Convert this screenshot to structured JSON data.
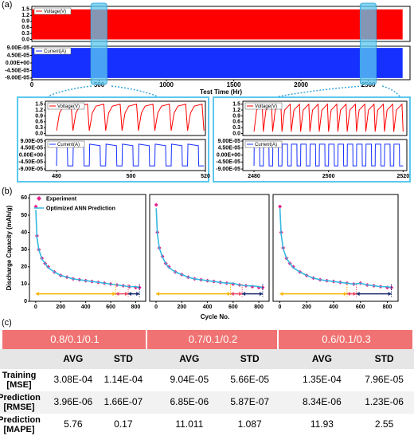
{
  "panel_labels": [
    "(a)",
    "(b)",
    "(c)"
  ],
  "chart_data": [
    {
      "type": "band",
      "xlim": [
        0,
        2810
      ],
      "ylim": [
        -0.1,
        1.65
      ],
      "yticks": [
        1.5,
        1.2,
        0.9,
        0.6,
        0.3,
        {
          "value": 0,
          "label": "0.0"
        }
      ],
      "series": [
        {
          "name": "Voltage(V)",
          "color": "#ff0000",
          "x": [
            0,
            2755
          ],
          "low": [
            0,
            0
          ],
          "high": [
            1.5,
            1.5
          ]
        }
      ]
    },
    {
      "type": "band",
      "xlim": [
        0,
        2810
      ],
      "ylim": [
        -0.0001,
        0.0001
      ],
      "x_label": "Test Time (Hr)",
      "xticks": [
        0,
        500,
        1000,
        1500,
        2000,
        2500
      ],
      "yticks": [
        {
          "value": 9e-05,
          "label": "9.00E-05"
        },
        {
          "value": 4.5e-05,
          "label": "4.50E-05"
        },
        {
          "value": 0,
          "label": "0.00E+00"
        },
        {
          "value": -4.5e-05,
          "label": "-4.50E-05"
        },
        {
          "value": -9e-05,
          "label": "-9.00E-05"
        }
      ],
      "series": [
        {
          "name": "Current(A)",
          "color": "#1530ff",
          "x": [
            0,
            2755
          ],
          "low": [
            -9e-05,
            -9e-05
          ],
          "high": [
            9e-05,
            9e-05
          ]
        }
      ]
    },
    {
      "type": "line",
      "xlim": [
        477,
        520
      ],
      "ylim": [
        -0.1,
        1.65
      ],
      "yticks": [
        1.5,
        1.2,
        0.9,
        0.6,
        0.3,
        {
          "value": 0,
          "label": "0.0"
        }
      ],
      "series": [
        {
          "name": "Voltage(V)",
          "color": "#ff0000",
          "x": [
            480,
            480.8,
            481.8,
            483.9,
            484.4,
            485.2,
            486.2,
            488.3,
            488.8,
            489.6,
            490.6,
            492.7,
            493.2,
            494,
            495,
            497.1,
            497.6,
            498.4,
            499.4,
            501.5,
            502,
            502.8,
            503.8,
            505.9,
            506.4,
            507.2,
            508.2,
            510.3,
            510.8,
            511.6,
            512.6,
            514.7,
            515.2,
            516,
            517,
            519.1,
            519.6
          ],
          "values": [
            0.15,
            1.05,
            1.4,
            1.5,
            0.15,
            1.05,
            1.4,
            1.5,
            0.15,
            1.05,
            1.4,
            1.5,
            0.15,
            1.05,
            1.4,
            1.5,
            0.15,
            1.05,
            1.4,
            1.5,
            0.15,
            1.05,
            1.4,
            1.5,
            0.15,
            1.05,
            1.4,
            1.5,
            0.15,
            1.05,
            1.4,
            1.5,
            0.15,
            1.05,
            1.4,
            1.5,
            0.15
          ]
        }
      ]
    },
    {
      "type": "line",
      "xlim": [
        477,
        520
      ],
      "ylim": [
        -0.0001,
        0.0001
      ],
      "xticks": [
        480,
        500,
        520
      ],
      "yticks": [
        {
          "value": 9e-05,
          "label": "9.00E-05"
        },
        {
          "value": 4.5e-05,
          "label": "4.50E-05"
        },
        {
          "value": 0,
          "label": "0.00E+00"
        },
        {
          "value": -4.5e-05,
          "label": "-4.50E-05"
        },
        {
          "value": -9e-05,
          "label": "-9.00E-05"
        }
      ],
      "series": [
        {
          "name": "Current(A)",
          "color": "#1530ff",
          "x": [
            480,
            480.1,
            482.9,
            483,
            484.4,
            484.5,
            487.3,
            487.4,
            488.8,
            488.9,
            491.7,
            491.8,
            493.2,
            493.3,
            496.1,
            496.2,
            497.6,
            497.7,
            500.5,
            500.6,
            502,
            502.1,
            504.9,
            505,
            506.4,
            506.5,
            509.3,
            509.4,
            510.8,
            510.9,
            513.7,
            513.8,
            515.2,
            515.3,
            518.1,
            518.2,
            519.6
          ],
          "values": [
            -7e-05,
            7e-05,
            6e-05,
            -7e-05,
            -7e-05,
            7e-05,
            6e-05,
            -7e-05,
            -7e-05,
            7e-05,
            6e-05,
            -7e-05,
            -7e-05,
            7e-05,
            6e-05,
            -7e-05,
            -7e-05,
            7e-05,
            6e-05,
            -7e-05,
            -7e-05,
            7e-05,
            6e-05,
            -7e-05,
            -7e-05,
            7e-05,
            6e-05,
            -7e-05,
            -7e-05,
            7e-05,
            6e-05,
            -7e-05,
            -7e-05,
            7e-05,
            6e-05,
            -7e-05,
            -7e-05
          ]
        }
      ]
    },
    {
      "type": "line",
      "xlim": [
        2477,
        2521
      ],
      "ylim": [
        -0.1,
        1.65
      ],
      "yticks": [
        1.5,
        1.2,
        0.9,
        0.6,
        0.3,
        {
          "value": 0,
          "label": "0.0"
        }
      ],
      "series": [
        {
          "name": "Voltage(V)",
          "color": "#ff0000",
          "x": [
            2480,
            2480.7,
            2482.2,
            2482.5,
            2483.2,
            2484.7,
            2485,
            2485.7,
            2487.2,
            2487.5,
            2488.2,
            2489.7,
            2490,
            2490.7,
            2492.2,
            2492.5,
            2493.2,
            2494.7,
            2495,
            2495.7,
            2497.2,
            2497.5,
            2498.2,
            2499.7,
            2500,
            2500.7,
            2502.2,
            2502.5,
            2503.2,
            2504.7,
            2505,
            2505.7,
            2507.2,
            2507.5,
            2508.2,
            2509.7,
            2510,
            2510.7,
            2512.2,
            2512.5,
            2513.2,
            2514.7,
            2515,
            2515.7,
            2517.2,
            2517.5,
            2518.2,
            2519.7,
            2520
          ],
          "values": [
            0.1,
            1.2,
            1.5,
            0.1,
            1.2,
            1.5,
            0.1,
            1.2,
            1.5,
            0.1,
            1.2,
            1.5,
            0.1,
            1.2,
            1.5,
            0.1,
            1.2,
            1.5,
            0.1,
            1.2,
            1.5,
            0.1,
            1.2,
            1.5,
            0.1,
            1.2,
            1.5,
            0.1,
            1.2,
            1.5,
            0.1,
            1.2,
            1.5,
            0.1,
            1.2,
            1.5,
            0.1,
            1.2,
            1.5,
            0.1,
            1.2,
            1.5,
            0.1,
            1.2,
            1.5,
            0.1,
            1.2,
            1.5,
            0.1
          ]
        }
      ]
    },
    {
      "type": "line",
      "xlim": [
        2477,
        2521
      ],
      "ylim": [
        -0.0001,
        0.0001
      ],
      "xticks": [
        2480,
        2500,
        2520
      ],
      "yticks": [
        {
          "value": 9e-05,
          "label": "9.00E-05"
        },
        {
          "value": 4.5e-05,
          "label": "4.50E-05"
        },
        {
          "value": 0,
          "label": "0.00E+00"
        },
        {
          "value": -4.5e-05,
          "label": "-4.50E-05"
        },
        {
          "value": -9e-05,
          "label": "-9.00E-05"
        }
      ],
      "series": [
        {
          "name": "Current(A)",
          "color": "#1530ff",
          "x": [
            2480,
            2480.05,
            2481.5,
            2481.55,
            2482.5,
            2482.55,
            2484,
            2484.05,
            2485,
            2485.05,
            2486.5,
            2486.55,
            2487.5,
            2487.55,
            2489,
            2489.05,
            2490,
            2490.05,
            2491.5,
            2491.55,
            2492.5,
            2492.55,
            2494,
            2494.05,
            2495,
            2495.05,
            2496.5,
            2496.55,
            2497.5,
            2497.55,
            2499,
            2499.05,
            2500,
            2500.05,
            2501.5,
            2501.55,
            2502.5,
            2502.55,
            2504,
            2504.05,
            2505,
            2505.05,
            2506.5,
            2506.55,
            2507.5,
            2507.55,
            2509,
            2509.05,
            2510,
            2510.05,
            2511.5,
            2511.55,
            2512.5,
            2512.55,
            2514,
            2514.05,
            2515,
            2515.05,
            2516.5,
            2516.55,
            2517.5,
            2517.55,
            2519,
            2519.05,
            2520
          ],
          "values": [
            -7e-05,
            7e-05,
            7e-05,
            -7e-05,
            -7e-05,
            7e-05,
            7e-05,
            -7e-05,
            -7e-05,
            7e-05,
            7e-05,
            -7e-05,
            -7e-05,
            7e-05,
            7e-05,
            -7e-05,
            -7e-05,
            7e-05,
            7e-05,
            -7e-05,
            -7e-05,
            7e-05,
            7e-05,
            -7e-05,
            -7e-05,
            7e-05,
            7e-05,
            -7e-05,
            -7e-05,
            7e-05,
            7e-05,
            -7e-05,
            -7e-05,
            7e-05,
            7e-05,
            -7e-05,
            -7e-05,
            7e-05,
            7e-05,
            -7e-05,
            -7e-05,
            7e-05,
            7e-05,
            -7e-05,
            -7e-05,
            7e-05,
            7e-05,
            -7e-05,
            -7e-05,
            7e-05,
            7e-05,
            -7e-05,
            -7e-05,
            7e-05,
            7e-05,
            -7e-05,
            -7e-05,
            7e-05,
            7e-05,
            -7e-05,
            -7e-05,
            7e-05,
            7e-05,
            -7e-05,
            -7e-05
          ]
        }
      ]
    },
    {
      "type": "line",
      "xlim": [
        -50,
        880
      ],
      "ylim": [
        0,
        62
      ],
      "x_label": "Cycle No.",
      "y_label": "Discharge Capacity (mAh/g)",
      "legend": "upper left",
      "xticks": [
        0,
        200,
        400,
        600,
        800
      ],
      "yticks": [
        0,
        10,
        20,
        30,
        40,
        50,
        60
      ],
      "series": [
        {
          "name": "Experiment",
          "color": "#e8208a",
          "style": "markers",
          "x": [
            1,
            10,
            25,
            50,
            75,
            100,
            150,
            200,
            250,
            300,
            350,
            400,
            450,
            500,
            550,
            600,
            650,
            700,
            750,
            800,
            830
          ],
          "values": [
            55,
            38,
            30,
            25,
            22,
            20,
            17,
            15,
            14,
            13,
            12.5,
            12,
            11.5,
            11,
            10.5,
            10,
            9.5,
            9,
            8.5,
            8,
            8
          ]
        },
        {
          "name": "Optimized ANN Prediction",
          "color": "#35b8e0",
          "style": "line",
          "x": [
            1,
            10,
            25,
            50,
            75,
            100,
            150,
            200,
            250,
            300,
            350,
            400,
            450,
            500,
            550,
            600,
            650,
            700,
            750,
            800,
            830
          ],
          "values": [
            53,
            37,
            30,
            24.5,
            22,
            19.5,
            17,
            15,
            14,
            13,
            12.5,
            12,
            11.5,
            11,
            10.5,
            10,
            9.5,
            9,
            8.5,
            8.5,
            8
          ]
        }
      ],
      "ranges": [
        {
          "start": 0,
          "end": 640,
          "color": "#f5b400"
        },
        {
          "start": 640,
          "end": 740,
          "color": "#e8475f"
        },
        {
          "start": 740,
          "end": 830,
          "color": "#1a2a6c"
        }
      ]
    },
    {
      "type": "line",
      "xlim": [
        -50,
        880
      ],
      "ylim": [
        0,
        62
      ],
      "xticks": [
        0,
        200,
        400,
        600,
        800
      ],
      "series": [
        {
          "name": "Experiment",
          "color": "#e8208a",
          "style": "markers",
          "x": [
            1,
            10,
            25,
            50,
            75,
            100,
            150,
            200,
            250,
            300,
            350,
            400,
            450,
            500,
            550,
            600,
            650,
            700,
            750,
            800,
            830
          ],
          "values": [
            56,
            40,
            31,
            26,
            22,
            20,
            17,
            15.5,
            14,
            13,
            12.5,
            12,
            11.5,
            11,
            10.5,
            10,
            9.5,
            9,
            8.5,
            8,
            8
          ]
        },
        {
          "name": "Optimized ANN Prediction",
          "color": "#35b8e0",
          "style": "line",
          "x": [
            1,
            10,
            25,
            50,
            75,
            100,
            150,
            200,
            250,
            300,
            350,
            400,
            450,
            500,
            550,
            600,
            650,
            700,
            750,
            800,
            830
          ],
          "values": [
            54,
            39,
            31,
            25.5,
            22,
            19.5,
            17,
            15.5,
            14,
            13,
            12.5,
            12,
            11.5,
            11,
            10.5,
            10.5,
            9.5,
            9,
            9,
            8.5,
            8
          ]
        }
      ],
      "ranges": [
        {
          "start": 0,
          "end": 580,
          "color": "#f5b400"
        },
        {
          "start": 580,
          "end": 670,
          "color": "#e8475f"
        },
        {
          "start": 670,
          "end": 830,
          "color": "#1a2a6c"
        }
      ]
    },
    {
      "type": "line",
      "xlim": [
        -50,
        880
      ],
      "ylim": [
        0,
        62
      ],
      "xticks": [
        0,
        200,
        400,
        600,
        800
      ],
      "series": [
        {
          "name": "Experiment",
          "color": "#e8208a",
          "style": "markers",
          "x": [
            1,
            10,
            25,
            50,
            75,
            100,
            150,
            200,
            250,
            300,
            350,
            400,
            450,
            500,
            550,
            600,
            650,
            700,
            750,
            800,
            830
          ],
          "values": [
            55,
            40,
            31,
            25,
            22,
            20,
            17,
            15,
            13.5,
            12.5,
            12,
            11.5,
            11,
            10.5,
            10,
            10.5,
            9.5,
            9,
            8.5,
            8,
            8
          ]
        },
        {
          "name": "Optimized ANN Prediction",
          "color": "#35b8e0",
          "style": "line",
          "x": [
            1,
            10,
            25,
            50,
            75,
            100,
            150,
            200,
            250,
            300,
            350,
            400,
            450,
            500,
            550,
            600,
            650,
            700,
            750,
            800,
            830
          ],
          "values": [
            54,
            39,
            30.5,
            25,
            22,
            19.5,
            17,
            15,
            13.5,
            12.5,
            12,
            11.5,
            11,
            10.5,
            10,
            10.5,
            9.5,
            9,
            8.5,
            8.5,
            8
          ]
        }
      ],
      "ranges": [
        {
          "start": 0,
          "end": 500,
          "color": "#f5b400"
        },
        {
          "start": 500,
          "end": 570,
          "color": "#e8475f"
        },
        {
          "start": 570,
          "end": 830,
          "color": "#1a2a6c"
        }
      ]
    }
  ],
  "table": {
    "groups": [
      "0.8/0.1/0.1",
      "0.7/0.1/0.2",
      "0.6/0.1/0.3"
    ],
    "columns": [
      "AVG",
      "STD"
    ],
    "rows": [
      {
        "label": [
          "Training",
          "[MSE]"
        ],
        "cells": [
          "3.08E-04",
          "1.14E-04",
          "9.04E-05",
          "5.66E-05",
          "1.35E-04",
          "7.96E-05"
        ]
      },
      {
        "label": [
          "Prediction",
          "[RMSE]"
        ],
        "cells": [
          "3.96E-06",
          "1.66E-07",
          "6.85E-06",
          "5.87E-07",
          "8.34E-06",
          "1.23E-06"
        ]
      },
      {
        "label": [
          "Prediction",
          "[MAPE]"
        ],
        "cells": [
          "5.76",
          "0.17",
          "11.011",
          "1.087",
          "11.93",
          "2.55"
        ]
      }
    ]
  }
}
